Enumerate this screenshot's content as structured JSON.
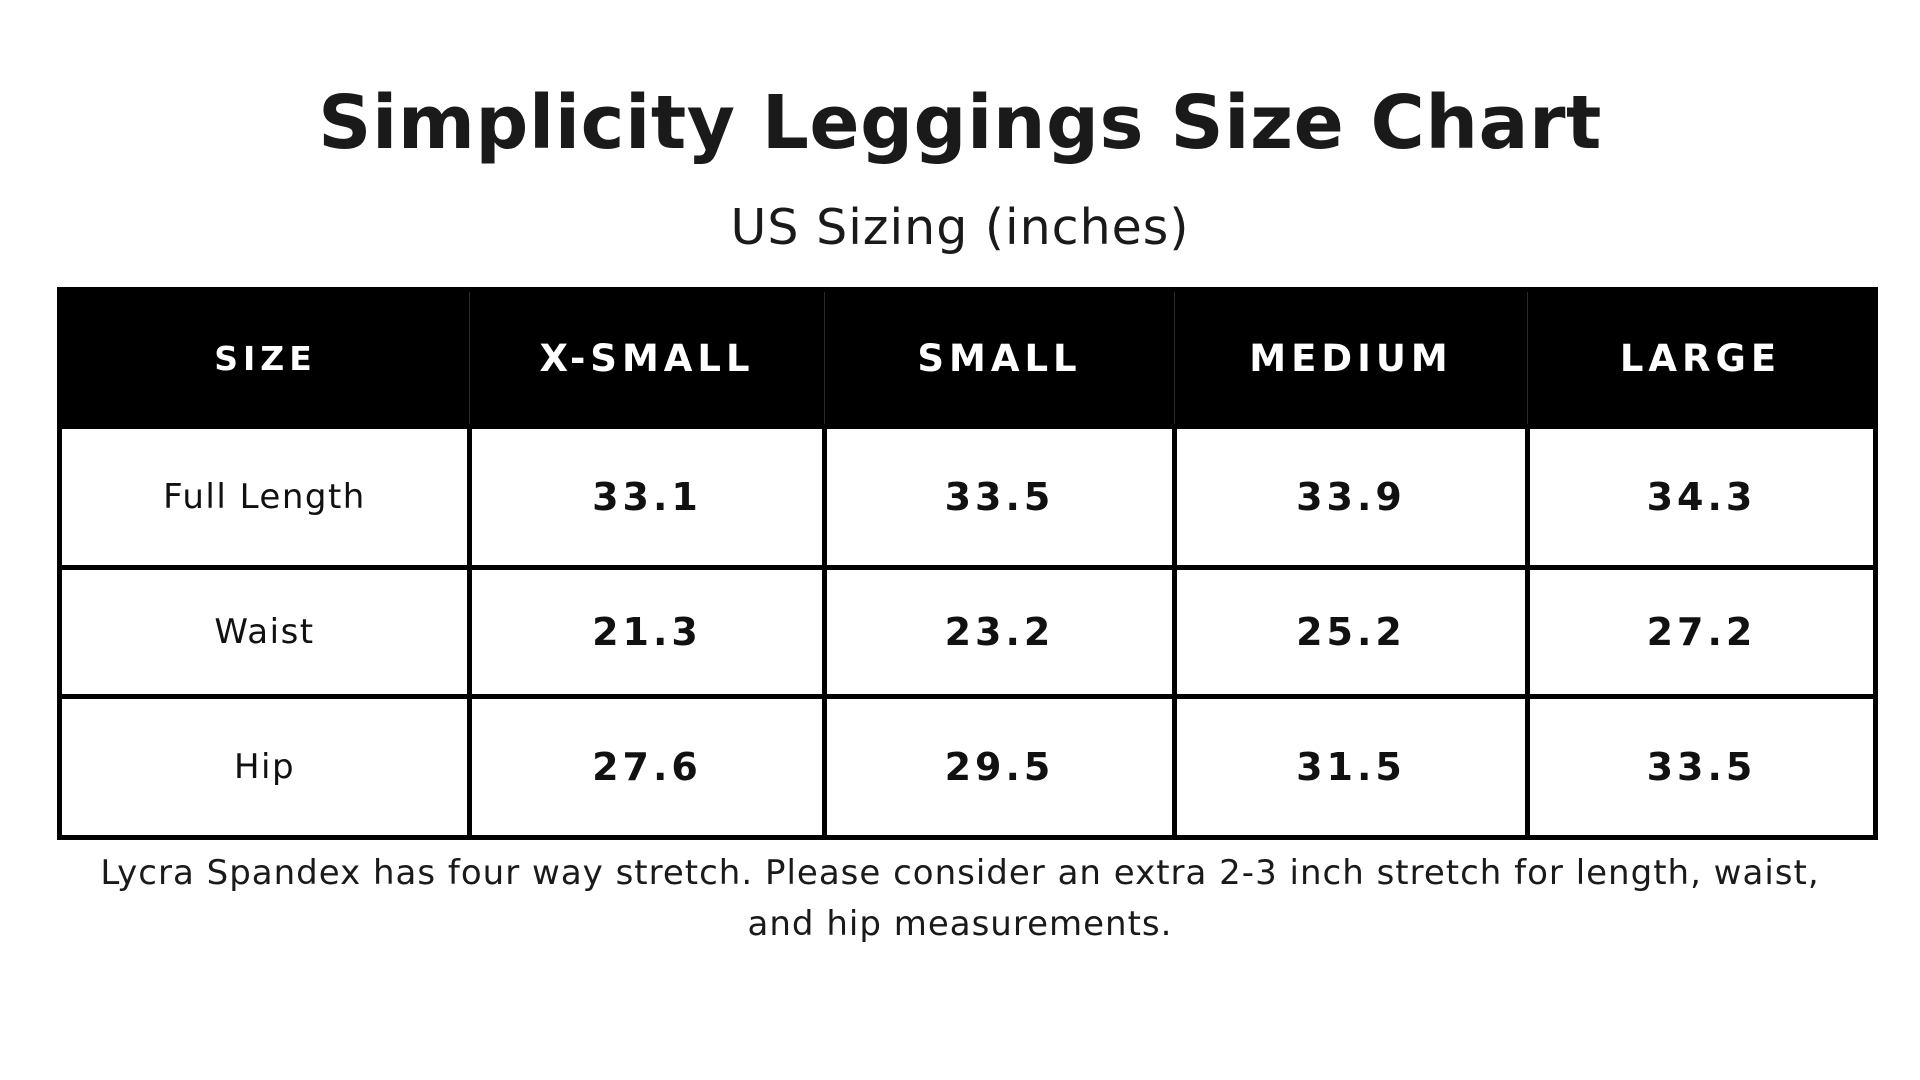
{
  "title": "Simplicity Leggings Size Chart",
  "subtitle": "US Sizing (inches)",
  "table": {
    "headers": [
      "SIZE",
      "X-SMALL",
      "SMALL",
      "MEDIUM",
      "LARGE"
    ],
    "rows": [
      {
        "label": "Full Length",
        "values": [
          "33.1",
          "33.5",
          "33.9",
          "34.3"
        ]
      },
      {
        "label": "Waist",
        "values": [
          "21.3",
          "23.2",
          "25.2",
          "27.2"
        ]
      },
      {
        "label": "Hip",
        "values": [
          "27.6",
          "29.5",
          "31.5",
          "33.5"
        ]
      }
    ]
  },
  "note": {
    "line1": "Lycra Spandex has four way stretch. Please consider an extra 2-3 inch stretch for length, waist,",
    "line2": "and hip measurements."
  },
  "colors": {
    "header_background": "#000000",
    "header_text": "#ffffff",
    "text": "#1a1a1a",
    "border": "#000000"
  }
}
